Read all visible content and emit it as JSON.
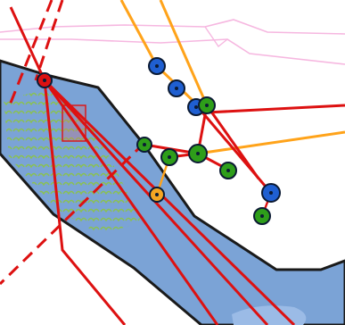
{
  "map": {
    "colors": {
      "background": "#ffffff",
      "water": "#7ba3d6",
      "water_light": "#9bbbe6",
      "water_edge": "#1a1a1a",
      "vegetation": "#8bc34a",
      "road_red": "#dd1111",
      "route_orange": "#ffa31a",
      "boundary_pink": "#f6b7e0",
      "marker_blue": "#1f5fd1",
      "marker_green": "#2e9e1a",
      "marker_orange": "#f5a623",
      "marker_red": "#dd1111",
      "marker_outline": "#0b1a33"
    },
    "markers": [
      {
        "kind": "blue-marker",
        "color": "marker_blue"
      },
      {
        "kind": "blue-marker",
        "color": "marker_blue"
      },
      {
        "kind": "blue-marker",
        "color": "marker_blue"
      },
      {
        "kind": "blue-marker",
        "color": "marker_blue"
      },
      {
        "kind": "green-marker",
        "color": "marker_green"
      },
      {
        "kind": "green-marker",
        "color": "marker_green"
      },
      {
        "kind": "green-marker",
        "color": "marker_green"
      },
      {
        "kind": "green-marker",
        "color": "marker_green"
      },
      {
        "kind": "green-marker",
        "color": "marker_green"
      },
      {
        "kind": "green-marker",
        "color": "marker_green"
      },
      {
        "kind": "orange-marker",
        "color": "marker_orange"
      },
      {
        "kind": "red-marker",
        "color": "marker_red"
      }
    ]
  }
}
